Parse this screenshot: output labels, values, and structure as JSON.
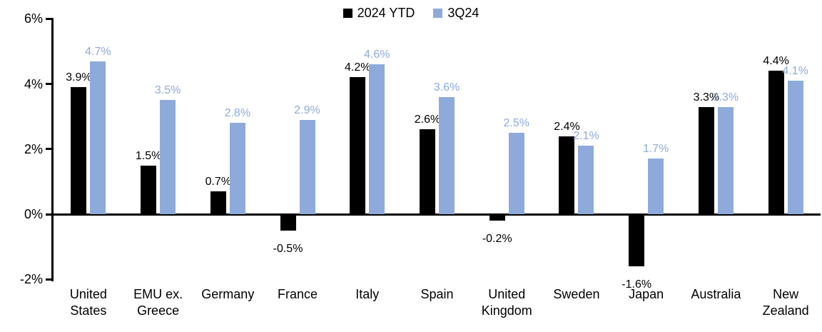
{
  "chart_data": {
    "type": "bar",
    "title": "",
    "xlabel": "",
    "ylabel": "",
    "ylim": [
      -2,
      6
    ],
    "grid": false,
    "legend_position": "top-center",
    "value_suffix": "%",
    "categories": [
      "United States",
      "EMU ex. Greece",
      "Germany",
      "France",
      "Italy",
      "Spain",
      "United Kingdom",
      "Sweden",
      "Japan",
      "Australia",
      "New Zealand"
    ],
    "category_lines": [
      [
        "United",
        "States"
      ],
      [
        "EMU ex.",
        "Greece"
      ],
      [
        "Germany"
      ],
      [
        "France"
      ],
      [
        "Italy"
      ],
      [
        "Spain"
      ],
      [
        "United",
        "Kingdom"
      ],
      [
        "Sweden"
      ],
      [
        "Japan"
      ],
      [
        "Australia"
      ],
      [
        "New",
        "Zealand"
      ]
    ],
    "series": [
      {
        "name": "2024 YTD",
        "color": "#000000",
        "label_color": "#000000",
        "values": [
          3.9,
          1.5,
          0.7,
          -0.5,
          4.2,
          2.6,
          -0.2,
          2.4,
          -1.6,
          3.3,
          4.4
        ],
        "labels": [
          "3.9%",
          "1.5%",
          "0.7%",
          "-0.5%",
          "4.2%",
          "2.6%",
          "-0.2%",
          "2.4%",
          "-1.6%",
          "3.3%",
          "4.4%"
        ]
      },
      {
        "name": "3Q24",
        "color": "#8EAADB",
        "label_color": "#8EAADB",
        "values": [
          4.7,
          3.5,
          2.8,
          2.9,
          4.6,
          3.6,
          2.5,
          2.1,
          1.7,
          3.3,
          4.1
        ],
        "labels": [
          "4.7%",
          "3.5%",
          "2.8%",
          "2.9%",
          "4.6%",
          "3.6%",
          "2.5%",
          "2.1%",
          "1.7%",
          "3.3%",
          "4.1%"
        ]
      }
    ],
    "yticks": [
      "6%",
      "4%",
      "2%",
      "0%",
      "-2%"
    ],
    "ytick_values": [
      6,
      4,
      2,
      0,
      -2
    ]
  },
  "colors": {
    "axis": "#000000",
    "background": "#ffffff",
    "series_2024_ytd": "#000000",
    "series_3q24": "#8EAADB"
  }
}
